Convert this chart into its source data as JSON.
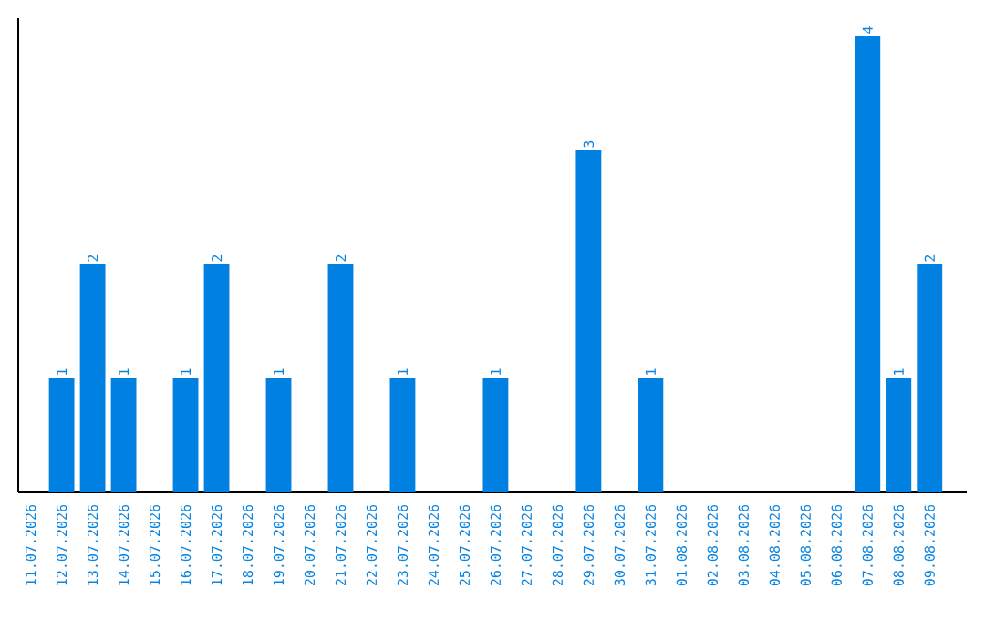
{
  "chart_data": {
    "type": "bar",
    "categories": [
      "11.07.2026",
      "12.07.2026",
      "13.07.2026",
      "14.07.2026",
      "15.07.2026",
      "16.07.2026",
      "17.07.2026",
      "18.07.2026",
      "19.07.2026",
      "20.07.2026",
      "21.07.2026",
      "22.07.2026",
      "23.07.2026",
      "24.07.2026",
      "25.07.2026",
      "26.07.2026",
      "27.07.2026",
      "28.07.2026",
      "29.07.2026",
      "30.07.2026",
      "31.07.2026",
      "01.08.2026",
      "02.08.2026",
      "03.08.2026",
      "04.08.2026",
      "05.08.2026",
      "06.08.2026",
      "07.08.2026",
      "08.08.2026",
      "09.08.2026"
    ],
    "values": [
      0,
      1,
      2,
      1,
      0,
      1,
      2,
      0,
      1,
      0,
      2,
      0,
      1,
      0,
      0,
      1,
      0,
      0,
      3,
      0,
      1,
      0,
      0,
      0,
      0,
      0,
      0,
      4,
      1,
      2
    ],
    "value_labels": [
      null,
      "1",
      "2",
      "1",
      null,
      "1",
      "2",
      null,
      "1",
      null,
      "2",
      null,
      "1",
      null,
      null,
      "1",
      null,
      null,
      "3",
      null,
      "1",
      null,
      null,
      null,
      null,
      null,
      null,
      "4",
      "1",
      "2"
    ],
    "color": "#0080e0",
    "tick_labels": "x"
  }
}
